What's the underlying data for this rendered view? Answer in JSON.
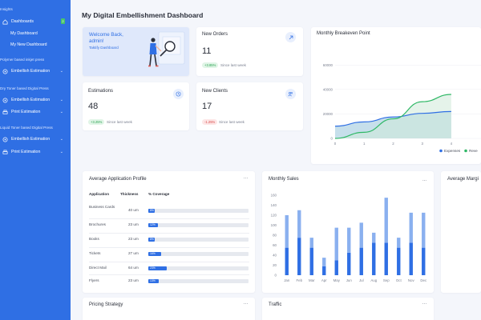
{
  "sidebar": {
    "top_section": "Insights",
    "dashboards_label": "Dashboards",
    "dashboards_badge": "2",
    "sub_items": [
      "My Dashboard",
      "My New Dashboard"
    ],
    "sections": [
      {
        "title": "Polymer based inkjet press",
        "items": [
          {
            "label": "Embellish Estimation"
          }
        ]
      },
      {
        "title": "Dry Toner based Digital Press",
        "items": [
          {
            "label": "Embellish Estimation"
          },
          {
            "label": "Print Estimation"
          }
        ]
      },
      {
        "title": "Liquid Toner based Digital Press",
        "items": [
          {
            "label": "Embellish Estimation"
          },
          {
            "label": "Print Estimation"
          }
        ]
      }
    ]
  },
  "header": {
    "title": "My Digital Embellishment Dashboard"
  },
  "welcome": {
    "line1": "Welcome Back,",
    "line2": "admin!",
    "subtitle": "Taktify Dashboard"
  },
  "stats": {
    "new_orders": {
      "title": "New Orders",
      "value": "11",
      "change": "+3.85%",
      "since": "Since last week"
    },
    "estimations": {
      "title": "Estimations",
      "value": "48",
      "change": "+3.25%",
      "since": "Since last week"
    },
    "new_clients": {
      "title": "New Clients",
      "value": "17",
      "change": "-1.25%",
      "since": "Since last week"
    }
  },
  "breakeven": {
    "title": "Monthly Breakeven Point",
    "legend": [
      "Expenses",
      "Reve"
    ],
    "colors": {
      "expenses": "#2f6fe4",
      "revenue": "#2fb866"
    }
  },
  "app_profile": {
    "title": "Average Application Profile",
    "menu": "...",
    "headers": [
      "Application",
      "Thickness",
      "% Coverage"
    ],
    "rows": [
      {
        "app": "Business Cards",
        "thickness": "40 um",
        "coverage": 8,
        "label": "8%"
      },
      {
        "app": "Brochures",
        "thickness": "23 um",
        "coverage": 12,
        "label": "12%"
      },
      {
        "app": "Books",
        "thickness": "23 um",
        "coverage": 8,
        "label": "8%"
      },
      {
        "app": "Tickets",
        "thickness": "27 um",
        "coverage": 16,
        "label": "16%"
      },
      {
        "app": "Direct Mail",
        "thickness": "64 um",
        "coverage": 23,
        "label": "23%"
      },
      {
        "app": "Flyers",
        "thickness": "23 um",
        "coverage": 13,
        "label": "13%"
      }
    ]
  },
  "monthly_sales_card": {
    "title": "Monthly Sales",
    "menu": "..."
  },
  "avg_margin_card": {
    "title": "Average Margi"
  },
  "pricing_card": {
    "title": "Pricing Strategy",
    "menu": "..."
  },
  "traffic_card": {
    "title": "Traffic",
    "menu": "..."
  },
  "chart_data": [
    {
      "type": "area",
      "title": "Monthly Breakeven Point",
      "x": [
        0,
        1,
        2,
        3,
        4
      ],
      "xticks": [
        "0",
        "1",
        "2",
        "3",
        "4"
      ],
      "yticks": [
        "0",
        "20000",
        "40000",
        "60000"
      ],
      "ylim": [
        0,
        70000
      ],
      "series": [
        {
          "name": "Expenses",
          "values": [
            10000,
            13500,
            17500,
            20500,
            22000
          ]
        },
        {
          "name": "Reve",
          "values": [
            0,
            5000,
            16000,
            30000,
            36000
          ]
        }
      ],
      "legend_position": "bottom"
    },
    {
      "type": "bar",
      "title": "Monthly Sales",
      "categories": [
        "Jan",
        "Feb",
        "Mar",
        "Apr",
        "May",
        "Jun",
        "Jul",
        "Aug",
        "Sep",
        "Oct",
        "Nov",
        "Dec"
      ],
      "ylim": [
        0,
        160
      ],
      "yticks": [
        "0",
        "20",
        "40",
        "60",
        "80",
        "100",
        "120",
        "140",
        "160"
      ],
      "series": [
        {
          "values": [
            55,
            75,
            55,
            18,
            30,
            45,
            55,
            65,
            65,
            55,
            65,
            55
          ]
        },
        {
          "values": [
            65,
            55,
            20,
            17,
            65,
            50,
            50,
            20,
            90,
            20,
            60,
            70
          ]
        }
      ],
      "colors": [
        "#2f6fe4",
        "#8ab0ef"
      ]
    }
  ]
}
